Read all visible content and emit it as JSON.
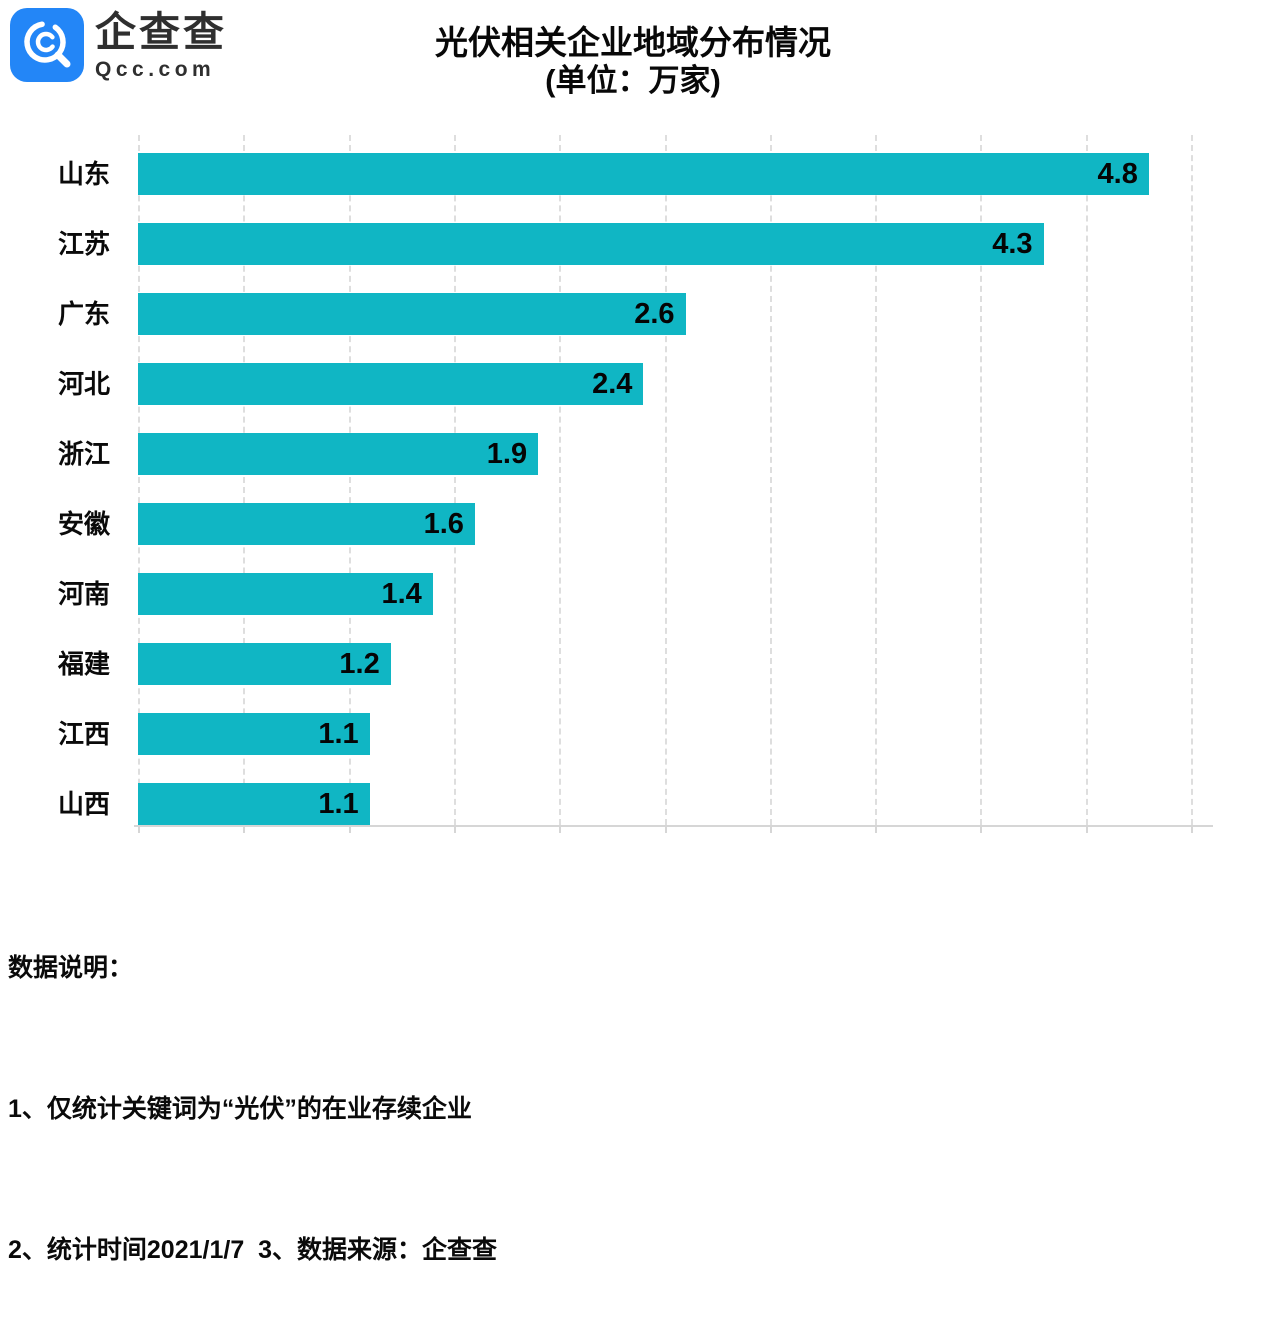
{
  "brand": {
    "name": "企查查",
    "domain": "Qcc.com",
    "logo_color": "#2386f7",
    "icon": "magnifier-q-icon"
  },
  "chart_data": {
    "type": "bar",
    "orientation": "horizontal",
    "title": "光伏相关企业地域分布情况",
    "subtitle": "(单位：万家)",
    "unit": "万家",
    "categories": [
      "山东",
      "江苏",
      "广东",
      "河北",
      "浙江",
      "安徽",
      "河南",
      "福建",
      "江西",
      "山西"
    ],
    "values": [
      4.8,
      4.3,
      2.6,
      2.4,
      1.9,
      1.6,
      1.4,
      1.2,
      1.1,
      1.1
    ],
    "xlim": [
      0,
      5
    ],
    "grid_interval": 0.5,
    "grid": "dashed-vertical",
    "grid_color": "#dedede",
    "bar_color": "#10b6c4",
    "value_label_position": "inside-end",
    "tick_labels_visible": false,
    "legend": "none"
  },
  "notes": {
    "heading": "数据说明：",
    "line1": "1、仅统计关键词为“光伏”的在业存续企业",
    "line2": "2、统计时间2021/1/7  3、数据来源：企查查"
  }
}
